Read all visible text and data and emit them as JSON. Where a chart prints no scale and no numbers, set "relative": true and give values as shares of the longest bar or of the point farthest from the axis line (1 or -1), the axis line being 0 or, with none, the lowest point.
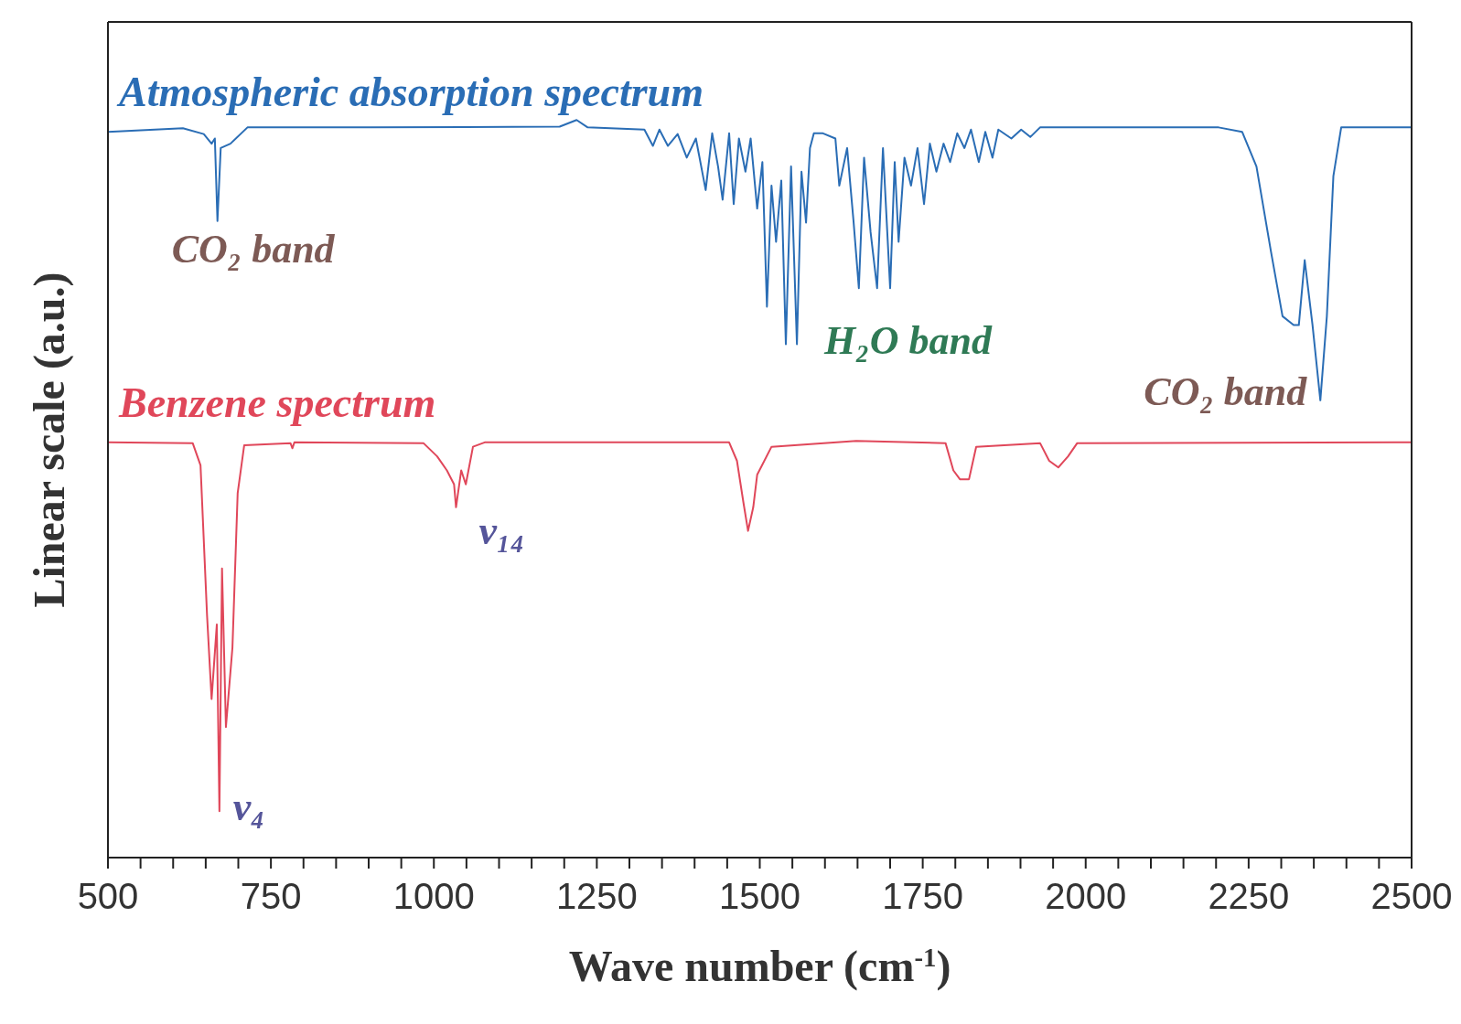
{
  "chart_data": {
    "type": "line",
    "relative": true,
    "xlabel": "Wave number (cm$^{-1}$)",
    "ylabel": "Linear scale (a.u.)",
    "xlim": [
      500,
      2500
    ],
    "xticks": [
      500,
      {
        "value": 550,
        "label": null
      },
      {
        "value": 600,
        "label": null
      },
      {
        "value": 650,
        "label": null
      },
      {
        "value": 700,
        "label": null
      },
      750,
      {
        "value": 800,
        "label": null
      },
      {
        "value": 850,
        "label": null
      },
      {
        "value": 900,
        "label": null
      },
      {
        "value": 950,
        "label": null
      },
      1000,
      {
        "value": 1050,
        "label": null
      },
      {
        "value": 1100,
        "label": null
      },
      {
        "value": 1150,
        "label": null
      },
      {
        "value": 1200,
        "label": null
      },
      1250,
      {
        "value": 1300,
        "label": null
      },
      {
        "value": 1350,
        "label": null
      },
      {
        "value": 1400,
        "label": null
      },
      {
        "value": 1450,
        "label": null
      },
      1500,
      {
        "value": 1550,
        "label": null
      },
      {
        "value": 1600,
        "label": null
      },
      {
        "value": 1650,
        "label": null
      },
      {
        "value": 1700,
        "label": null
      },
      1750,
      {
        "value": 1800,
        "label": null
      },
      {
        "value": 1850,
        "label": null
      },
      {
        "value": 1900,
        "label": null
      },
      {
        "value": 1950,
        "label": null
      },
      2000,
      {
        "value": 2050,
        "label": null
      },
      {
        "value": 2100,
        "label": null
      },
      {
        "value": 2150,
        "label": null
      },
      {
        "value": 2200,
        "label": null
      },
      2250,
      {
        "value": 2300,
        "label": null
      },
      {
        "value": 2350,
        "label": null
      },
      {
        "value": 2400,
        "label": null
      },
      {
        "value": 2450,
        "label": null
      },
      2500
    ],
    "series": [
      {
        "name": "Atmospheric absorption spectrum",
        "color": "#2a6db5",
        "x": [
          500,
          615,
          647,
          659,
          664,
          668,
          673,
          688,
          714,
          904,
          1193,
          1219,
          1236,
          1323,
          1336,
          1346,
          1359,
          1374,
          1388,
          1402,
          1417,
          1427,
          1436,
          1443,
          1453,
          1460,
          1468,
          1478,
          1486,
          1496,
          1504,
          1511,
          1518,
          1525,
          1533,
          1540,
          1548,
          1557,
          1564,
          1571,
          1577,
          1583,
          1597,
          1616,
          1622,
          1634,
          1644,
          1652,
          1660,
          1670,
          1680,
          1689,
          1700,
          1707,
          1713,
          1722,
          1732,
          1742,
          1752,
          1761,
          1771,
          1782,
          1792,
          1803,
          1814,
          1824,
          1836,
          1846,
          1857,
          1866,
          1886,
          1901,
          1915,
          1930,
          1987,
          2204,
          2240,
          2262,
          2284,
          2302,
          2319,
          2327,
          2336,
          2348,
          2360,
          2370,
          2380,
          2392,
          2500
        ],
        "values": [
          0.984,
          0.989,
          0.981,
          0.968,
          0.975,
          0.863,
          0.962,
          0.968,
          0.99,
          0.99,
          0.991,
          1,
          0.99,
          0.987,
          0.965,
          0.987,
          0.965,
          0.981,
          0.949,
          0.975,
          0.905,
          0.982,
          0.937,
          0.892,
          0.982,
          0.886,
          0.975,
          0.93,
          0.975,
          0.88,
          0.943,
          0.747,
          0.911,
          0.835,
          0.918,
          0.696,
          0.937,
          0.696,
          0.93,
          0.861,
          0.962,
          0.982,
          0.982,
          0.975,
          0.911,
          0.962,
          0.861,
          0.772,
          0.949,
          0.848,
          0.772,
          0.962,
          0.772,
          0.943,
          0.835,
          0.949,
          0.911,
          0.962,
          0.886,
          0.968,
          0.93,
          0.968,
          0.943,
          0.982,
          0.962,
          0.987,
          0.943,
          0.984,
          0.949,
          0.987,
          0.975,
          0.987,
          0.977,
          0.99,
          0.99,
          0.99,
          0.984,
          0.937,
          0.823,
          0.734,
          0.722,
          0.722,
          0.81,
          0.722,
          0.62,
          0.734,
          0.924,
          0.99,
          0.99
        ]
      },
      {
        "name": "Benzene spectrum",
        "color": "#e0475a",
        "x": [
          500,
          630,
          642,
          652,
          659,
          667,
          671,
          675,
          681,
          691,
          699,
          709,
          780,
          783,
          786,
          984,
          1005,
          1020,
          1031,
          1034,
          1042,
          1049,
          1060,
          1078,
          1453,
          1465,
          1475,
          1482,
          1490,
          1496,
          1518,
          1648,
          1785,
          1797,
          1807,
          1821,
          1832,
          1930,
          1944,
          1958,
          1973,
          1987,
          2500
        ],
        "values": [
          0.563,
          0.562,
          0.532,
          0.329,
          0.215,
          0.316,
          0.063,
          0.392,
          0.177,
          0.285,
          0.494,
          0.559,
          0.562,
          0.555,
          0.563,
          0.562,
          0.544,
          0.525,
          0.506,
          0.475,
          0.525,
          0.506,
          0.557,
          0.563,
          0.563,
          0.538,
          0.481,
          0.443,
          0.475,
          0.519,
          0.557,
          0.565,
          0.562,
          0.525,
          0.513,
          0.513,
          0.557,
          0.562,
          0.538,
          0.529,
          0.544,
          0.562,
          0.563
        ]
      }
    ],
    "annotations": [
      {
        "text": "CO₂ band",
        "x": 668,
        "y": 0.863
      },
      {
        "text": "H₂O band",
        "x": 1557,
        "y": 0.696
      },
      {
        "text": "CO₂ band",
        "x": 2360,
        "y": 0.62
      },
      {
        "text": "ν₄",
        "x": 671,
        "y": 0.063
      },
      {
        "text": "ν₁₄",
        "x": 1034,
        "y": 0.475
      }
    ]
  }
}
